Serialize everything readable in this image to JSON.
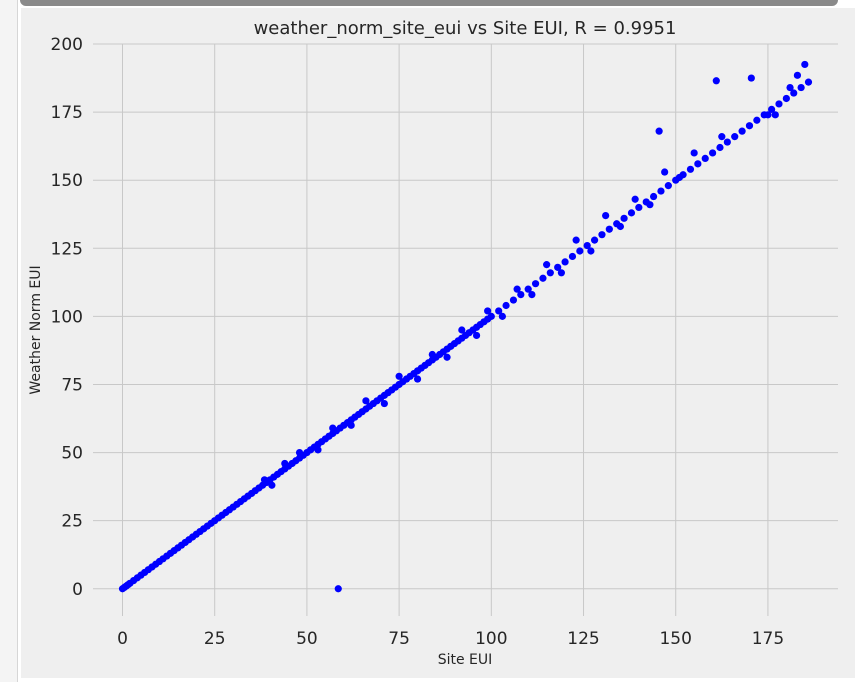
{
  "chart_data": {
    "type": "scatter",
    "title": "weather_norm_site_eui vs Site EUI, R = 0.9951",
    "xlabel": "Site EUI",
    "ylabel": "Weather Norm EUI",
    "xlim": [
      -8,
      194
    ],
    "ylim": [
      -10,
      200
    ],
    "xticks": [
      0,
      25,
      50,
      75,
      100,
      125,
      150,
      175
    ],
    "yticks": [
      0,
      25,
      50,
      75,
      100,
      125,
      150,
      175,
      200
    ],
    "xtick_labels": [
      "0",
      "25",
      "50",
      "75",
      "100",
      "125",
      "150",
      "175"
    ],
    "ytick_labels": [
      "0",
      "25",
      "50",
      "75",
      "100",
      "125",
      "150",
      "175",
      "200"
    ],
    "grid": true,
    "marker_color": "#0000ff",
    "background_color": "#efefef",
    "grid_color": "#c8c8c8",
    "points_note_free": true,
    "x": [
      0,
      0.5,
      1,
      1.5,
      2,
      3,
      4,
      5,
      6,
      7,
      8,
      9,
      10,
      11,
      12,
      13,
      14,
      15,
      16,
      17,
      18,
      19,
      20,
      21,
      22,
      23,
      24,
      25,
      26,
      27,
      28,
      29,
      30,
      31,
      32,
      33,
      34,
      35,
      36,
      37,
      38,
      39,
      40,
      41,
      42,
      43,
      44,
      45,
      46,
      47,
      48,
      49,
      50,
      51,
      52,
      53,
      54,
      55,
      56,
      57,
      58,
      59,
      60,
      61,
      62,
      63,
      64,
      65,
      66,
      67,
      68,
      69,
      70,
      71,
      72,
      73,
      74,
      75,
      76,
      77,
      78,
      79,
      80,
      81,
      82,
      83,
      84,
      85,
      86,
      87,
      88,
      89,
      90,
      91,
      92,
      93,
      94,
      95,
      96,
      97,
      98,
      99,
      100,
      102,
      104,
      106,
      108,
      110,
      112,
      114,
      116,
      118,
      120,
      122,
      124,
      126,
      128,
      130,
      132,
      134,
      136,
      138,
      140,
      142,
      144,
      146,
      148,
      150,
      152,
      154,
      156,
      158,
      160,
      162,
      164,
      166,
      168,
      170,
      172,
      174,
      176,
      178,
      180,
      182,
      184,
      186,
      58.5,
      38.5,
      40.5,
      44,
      48,
      53,
      57,
      62,
      66,
      71,
      75,
      80,
      84,
      88,
      92,
      96,
      99,
      103,
      107,
      111,
      115,
      119,
      123,
      127,
      131,
      135,
      139,
      143,
      147,
      151,
      155,
      145.5,
      161,
      162.5,
      170.5,
      175,
      177,
      181,
      183,
      185
    ],
    "y": [
      0,
      0.5,
      1,
      1.5,
      2,
      3,
      4,
      5,
      6,
      7,
      8,
      9,
      10,
      11,
      12,
      13,
      14,
      15,
      16,
      17,
      18,
      19,
      20,
      21,
      22,
      23,
      24,
      25,
      26,
      27,
      28,
      29,
      30,
      31,
      32,
      33,
      34,
      35,
      36,
      37,
      38,
      39,
      40,
      41,
      42,
      43,
      44,
      45,
      46,
      47,
      48,
      49,
      50,
      51,
      52,
      53,
      54,
      55,
      56,
      57,
      58,
      59,
      60,
      61,
      62,
      63,
      64,
      65,
      66,
      67,
      68,
      69,
      70,
      71,
      72,
      73,
      74,
      75,
      76,
      77,
      78,
      79,
      80,
      81,
      82,
      83,
      84,
      85,
      86,
      87,
      88,
      89,
      90,
      91,
      92,
      93,
      94,
      95,
      96,
      97,
      98,
      99,
      100,
      102,
      104,
      106,
      108,
      110,
      112,
      114,
      116,
      118,
      120,
      122,
      124,
      126,
      128,
      130,
      132,
      134,
      136,
      138,
      140,
      142,
      144,
      146,
      148,
      150,
      152,
      154,
      156,
      158,
      160,
      162,
      164,
      166,
      168,
      170,
      172,
      174,
      176,
      178,
      180,
      182,
      184,
      186,
      0,
      40,
      38,
      46,
      50,
      51,
      59,
      60,
      69,
      68,
      78,
      77,
      86,
      85,
      95,
      93,
      102,
      100,
      110,
      108,
      119,
      116,
      128,
      124,
      137,
      133,
      143,
      141,
      153,
      151,
      160,
      168,
      186.5,
      166,
      187.5,
      174,
      174,
      184,
      188.5,
      192.5
    ]
  }
}
